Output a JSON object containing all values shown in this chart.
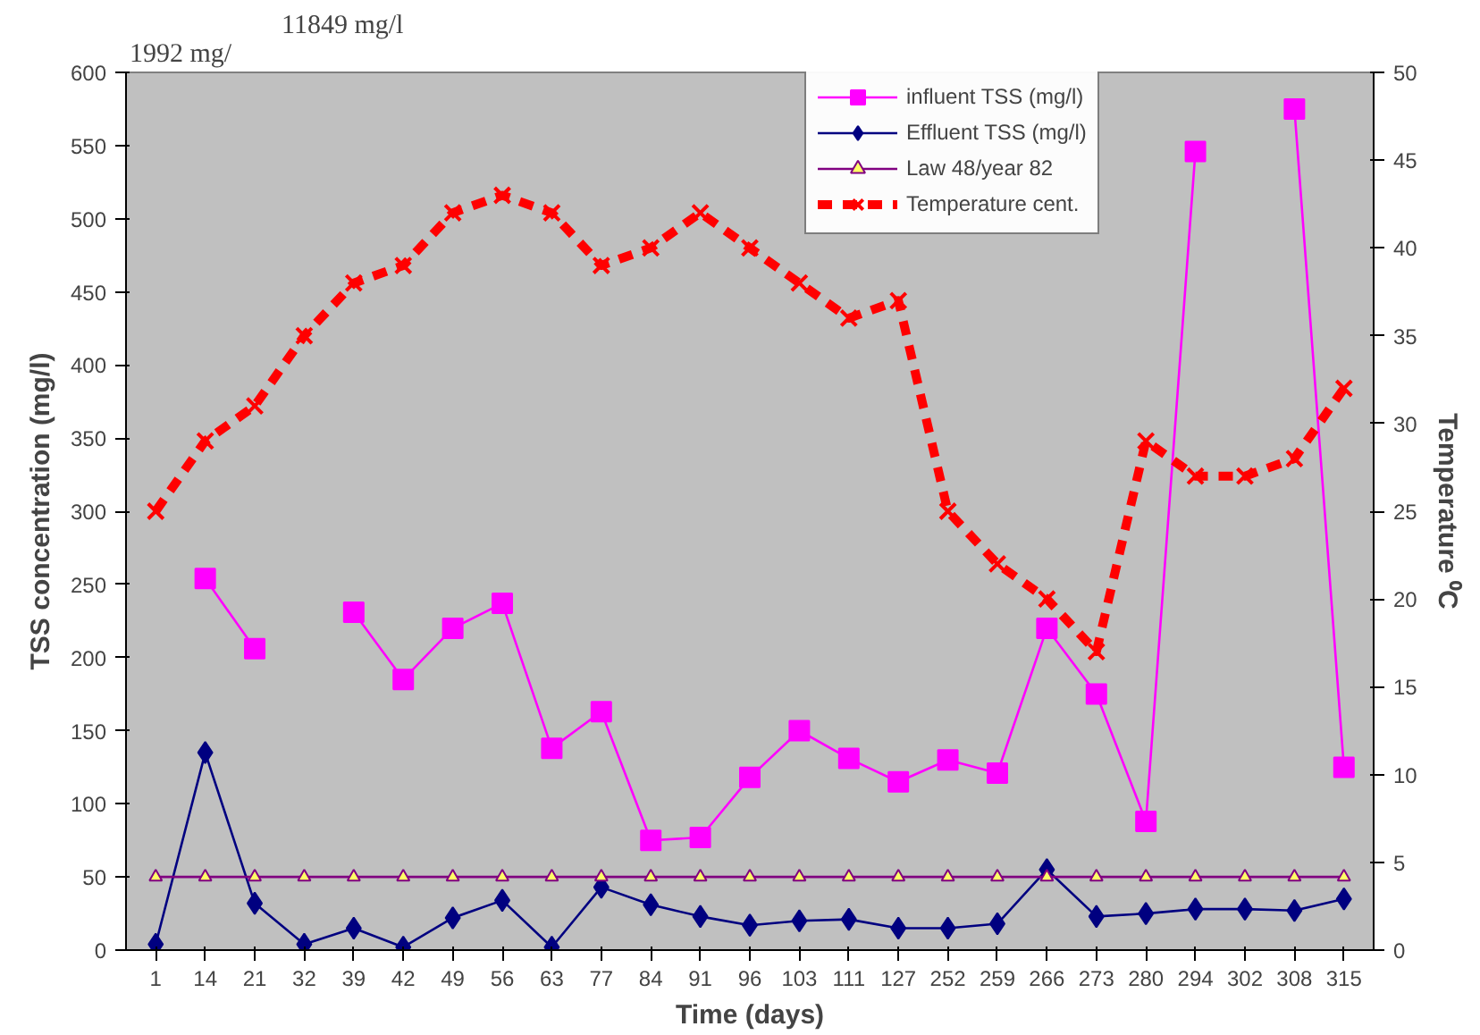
{
  "chart_data": {
    "type": "line",
    "xlabel": "Time (days)",
    "ylabel": "TSS concentration (mg/l)",
    "y2label": "Temperature ⁰C",
    "categories": [
      "1",
      "14",
      "21",
      "32",
      "39",
      "42",
      "49",
      "56",
      "63",
      "77",
      "84",
      "91",
      "96",
      "103",
      "111",
      "127",
      "252",
      "259",
      "266",
      "273",
      "280",
      "294",
      "302",
      "308",
      "315"
    ],
    "series": [
      {
        "name": "influent TSS (mg/l)",
        "color": "#ff00ff",
        "marker": "square",
        "line_style": "solid",
        "values": [
          null,
          254,
          206,
          null,
          231,
          185,
          220,
          237,
          138,
          163,
          75,
          77,
          118,
          150,
          131,
          115,
          130,
          121,
          220,
          175,
          88,
          546,
          null,
          575,
          125
        ]
      },
      {
        "name": "Effluent TSS (mg/l)",
        "color": "#000080",
        "marker": "diamond",
        "line_style": "solid",
        "values": [
          4,
          135,
          32,
          4,
          15,
          2,
          22,
          34,
          2,
          43,
          31,
          23,
          17,
          20,
          21,
          15,
          15,
          18,
          55,
          23,
          25,
          28,
          28,
          27,
          35
        ]
      },
      {
        "name": "Law 48/year 82",
        "color": "#800080",
        "marker": "triangle",
        "line_style": "solid",
        "values": [
          50,
          50,
          50,
          50,
          50,
          50,
          50,
          50,
          50,
          50,
          50,
          50,
          50,
          50,
          50,
          50,
          50,
          50,
          50,
          50,
          50,
          50,
          50,
          50,
          50
        ]
      },
      {
        "name": "Temperature cent.",
        "color": "#ff0000",
        "marker": "cross",
        "line_style": "dashed",
        "axis": "y2",
        "values": [
          25,
          29,
          31,
          35,
          38,
          39,
          42,
          43,
          42,
          39,
          40,
          42,
          40,
          38,
          36,
          37,
          25,
          22,
          20,
          17,
          29,
          27,
          27,
          28,
          32
        ]
      }
    ],
    "ylim": [
      0,
      600
    ],
    "yticks": [
      0,
      50,
      100,
      150,
      200,
      250,
      300,
      350,
      400,
      450,
      500,
      550,
      600
    ],
    "y2lim": [
      0,
      50
    ],
    "y2ticks": [
      0,
      5,
      10,
      15,
      20,
      25,
      30,
      35,
      40,
      45,
      50
    ],
    "annotations": [
      "1992 mg/",
      "11849 mg/l"
    ],
    "grid": false,
    "legend": "top"
  }
}
